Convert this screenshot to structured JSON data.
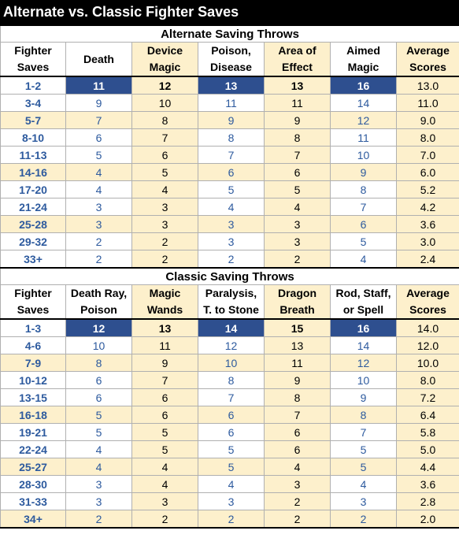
{
  "title": "Alternate vs. Classic Fighter Saves",
  "colors": {
    "highlight_bg": "#fdf0cc",
    "selected_bg": "#2e4f8f",
    "accent_text": "#2d5a9e",
    "title_bg": "#000000"
  },
  "alternate": {
    "section_title": "Alternate Saving Throws",
    "headers": [
      "Fighter\nSaves",
      "Death",
      "Device\nMagic",
      "Poison,\nDisease",
      "Area of\nEffect",
      "Aimed\nMagic",
      "Average\nScores"
    ],
    "rows": [
      [
        "1-2",
        "11",
        "12",
        "13",
        "13",
        "16",
        "13.0"
      ],
      [
        "3-4",
        "9",
        "10",
        "11",
        "11",
        "14",
        "11.0"
      ],
      [
        "5-7",
        "7",
        "8",
        "9",
        "9",
        "12",
        "9.0"
      ],
      [
        "8-10",
        "6",
        "7",
        "8",
        "8",
        "11",
        "8.0"
      ],
      [
        "11-13",
        "5",
        "6",
        "7",
        "7",
        "10",
        "7.0"
      ],
      [
        "14-16",
        "4",
        "5",
        "6",
        "6",
        "9",
        "6.0"
      ],
      [
        "17-20",
        "4",
        "4",
        "5",
        "5",
        "8",
        "5.2"
      ],
      [
        "21-24",
        "3",
        "3",
        "4",
        "4",
        "7",
        "4.2"
      ],
      [
        "25-28",
        "3",
        "3",
        "3",
        "3",
        "6",
        "3.6"
      ],
      [
        "29-32",
        "2",
        "2",
        "3",
        "3",
        "5",
        "3.0"
      ],
      [
        "33+",
        "2",
        "2",
        "2",
        "2",
        "4",
        "2.4"
      ]
    ]
  },
  "classic": {
    "section_title": "Classic Saving Throws",
    "headers": [
      "Fighter\nSaves",
      "Death Ray,\nPoison",
      "Magic\nWands",
      "Paralysis,\nT. to Stone",
      "Dragon\nBreath",
      "Rod, Staff,\nor Spell",
      "Average\nScores"
    ],
    "rows": [
      [
        "1-3",
        "12",
        "13",
        "14",
        "15",
        "16",
        "14.0"
      ],
      [
        "4-6",
        "10",
        "11",
        "12",
        "13",
        "14",
        "12.0"
      ],
      [
        "7-9",
        "8",
        "9",
        "10",
        "11",
        "12",
        "10.0"
      ],
      [
        "10-12",
        "6",
        "7",
        "8",
        "9",
        "10",
        "8.0"
      ],
      [
        "13-15",
        "6",
        "6",
        "7",
        "8",
        "9",
        "7.2"
      ],
      [
        "16-18",
        "5",
        "6",
        "6",
        "7",
        "8",
        "6.4"
      ],
      [
        "19-21",
        "5",
        "5",
        "6",
        "6",
        "7",
        "5.8"
      ],
      [
        "22-24",
        "4",
        "5",
        "5",
        "6",
        "5",
        "5.0"
      ],
      [
        "25-27",
        "4",
        "4",
        "5",
        "4",
        "5",
        "4.4"
      ],
      [
        "28-30",
        "3",
        "4",
        "4",
        "3",
        "4",
        "3.6"
      ],
      [
        "31-33",
        "3",
        "3",
        "3",
        "2",
        "3",
        "2.8"
      ],
      [
        "34+",
        "2",
        "2",
        "2",
        "2",
        "2",
        "2.0"
      ]
    ]
  }
}
